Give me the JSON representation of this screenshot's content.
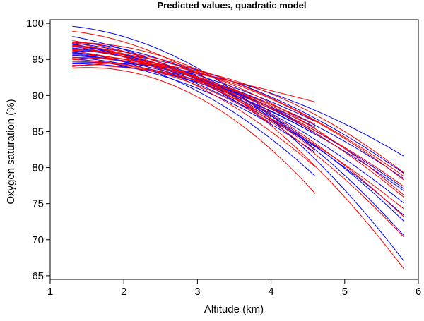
{
  "chart_data": {
    "type": "line",
    "title": "Predicted values, quadratic model",
    "xlabel": "Altitude (km)",
    "ylabel": "Oxygen saturation (%)",
    "xlim": [
      1,
      6
    ],
    "ylim": [
      64.5,
      100.5
    ],
    "xticks": [
      1,
      2,
      3,
      4,
      5,
      6
    ],
    "yticks": [
      65,
      70,
      75,
      80,
      85,
      90,
      95,
      100
    ],
    "grid": false,
    "legend": "none",
    "colors": {
      "group_a": "#ff0000",
      "group_b": "#0000ff"
    },
    "series": [
      {
        "group": "group_b",
        "x": [
          1.3,
          3.0,
          5.8
        ],
        "y": [
          99.6,
          93.8,
          67.1
        ]
      },
      {
        "group": "group_b",
        "x": [
          1.3,
          3.0,
          5.8
        ],
        "y": [
          97.4,
          93.0,
          70.6
        ]
      },
      {
        "group": "group_b",
        "x": [
          1.3,
          3.0,
          5.8
        ],
        "y": [
          97.3,
          92.6,
          72.6
        ]
      },
      {
        "group": "group_b",
        "x": [
          1.3,
          3.0,
          5.8
        ],
        "y": [
          97.1,
          92.3,
          75.1
        ]
      },
      {
        "group": "group_b",
        "x": [
          1.3,
          3.0,
          5.8
        ],
        "y": [
          96.6,
          92.6,
          77.1
        ]
      },
      {
        "group": "group_b",
        "x": [
          1.3,
          3.0,
          5.8
        ],
        "y": [
          95.6,
          92.5,
          78.5
        ]
      },
      {
        "group": "group_b",
        "x": [
          1.3,
          3.0,
          5.8
        ],
        "y": [
          94.5,
          93.1,
          81.6
        ]
      },
      {
        "group": "group_b",
        "x": [
          1.3,
          3.0,
          5.8
        ],
        "y": [
          96.2,
          93.5,
          79.2
        ]
      },
      {
        "group": "group_b",
        "x": [
          1.3,
          3.0,
          5.8
        ],
        "y": [
          96.8,
          91.9,
          73.4
        ]
      },
      {
        "group": "group_b",
        "x": [
          1.3,
          3.0,
          5.8
        ],
        "y": [
          95.3,
          91.8,
          76.8
        ]
      },
      {
        "group": "group_b",
        "x": [
          1.3,
          3.0,
          4.6
        ],
        "y": [
          96.0,
          90.6,
          78.8
        ]
      },
      {
        "group": "group_b",
        "x": [
          1.3,
          3.0,
          4.6
        ],
        "y": [
          95.1,
          91.0,
          82.1
        ]
      },
      {
        "group": "group_b",
        "x": [
          1.3,
          3.0,
          4.6
        ],
        "y": [
          94.4,
          91.8,
          84.6
        ]
      },
      {
        "group": "group_b",
        "x": [
          1.3,
          3.0,
          4.6
        ],
        "y": [
          95.8,
          92.1,
          85.6
        ]
      },
      {
        "group": "group_b",
        "x": [
          1.3,
          3.0,
          4.6
        ],
        "y": [
          97.2,
          91.6,
          82.9
        ]
      },
      {
        "group": "group_b",
        "x": [
          1.3,
          3.0,
          4.6
        ],
        "y": [
          96.5,
          92.8,
          86.4
        ]
      },
      {
        "group": "group_b",
        "x": [
          1.3,
          3.0,
          4.6
        ],
        "y": [
          95.5,
          92.3,
          84.8
        ]
      },
      {
        "group": "group_b",
        "x": [
          1.3,
          2.5,
          4.0
        ],
        "y": [
          98.2,
          94.5,
          86.0
        ]
      },
      {
        "group": "group_b",
        "x": [
          1.3,
          2.5,
          4.0
        ],
        "y": [
          96.9,
          94.2,
          87.0
        ]
      },
      {
        "group": "group_b",
        "x": [
          1.3,
          2.5,
          4.0
        ],
        "y": [
          95.9,
          93.9,
          88.3
        ]
      },
      {
        "group": "group_a",
        "x": [
          1.3,
          3.0,
          4.6
        ],
        "y": [
          96.2,
          93.0,
          89.1
        ]
      },
      {
        "group": "group_a",
        "x": [
          1.3,
          3.0,
          4.6
        ],
        "y": [
          94.2,
          92.1,
          86.0
        ]
      },
      {
        "group": "group_a",
        "x": [
          1.3,
          3.0,
          4.6
        ],
        "y": [
          93.8,
          89.8,
          76.4
        ]
      },
      {
        "group": "group_a",
        "x": [
          1.3,
          3.0,
          4.6
        ],
        "y": [
          96.8,
          91.3,
          80.1
        ]
      },
      {
        "group": "group_a",
        "x": [
          1.3,
          3.0,
          4.6
        ],
        "y": [
          95.3,
          92.5,
          85.4
        ]
      },
      {
        "group": "group_a",
        "x": [
          1.3,
          3.0,
          5.8
        ],
        "y": [
          98.9,
          93.0,
          66.0
        ]
      },
      {
        "group": "group_a",
        "x": [
          1.3,
          3.0,
          5.8
        ],
        "y": [
          97.0,
          92.2,
          70.4
        ]
      },
      {
        "group": "group_a",
        "x": [
          1.3,
          3.0,
          5.8
        ],
        "y": [
          96.4,
          92.4,
          73.2
        ]
      },
      {
        "group": "group_a",
        "x": [
          1.3,
          3.0,
          5.8
        ],
        "y": [
          95.7,
          92.6,
          75.9
        ]
      },
      {
        "group": "group_a",
        "x": [
          1.3,
          3.0,
          5.8
        ],
        "y": [
          95.2,
          93.2,
          78.3
        ]
      },
      {
        "group": "group_a",
        "x": [
          1.3,
          3.0,
          5.8
        ],
        "y": [
          94.0,
          93.4,
          79.3
        ]
      },
      {
        "group": "group_a",
        "x": [
          1.3,
          3.0,
          5.8
        ],
        "y": [
          96.9,
          93.6,
          78.8
        ]
      },
      {
        "group": "group_a",
        "x": [
          1.3,
          3.0,
          5.8
        ],
        "y": [
          97.4,
          91.9,
          74.3
        ]
      },
      {
        "group": "group_a",
        "x": [
          1.3,
          3.0,
          5.8
        ],
        "y": [
          95.0,
          92.0,
          77.4
        ]
      },
      {
        "group": "group_a",
        "x": [
          1.3,
          3.0,
          5.8
        ],
        "y": [
          96.3,
          93.3,
          76.2
        ]
      },
      {
        "group": "group_a",
        "x": [
          1.3,
          3.0,
          4.6
        ],
        "y": [
          97.6,
          92.4,
          82.4
        ]
      },
      {
        "group": "group_a",
        "x": [
          1.3,
          2.5,
          4.0
        ],
        "y": [
          97.3,
          95.5,
          87.6
        ]
      },
      {
        "group": "group_a",
        "x": [
          1.3,
          2.5,
          4.0
        ],
        "y": [
          94.7,
          93.1,
          86.2
        ]
      }
    ]
  }
}
